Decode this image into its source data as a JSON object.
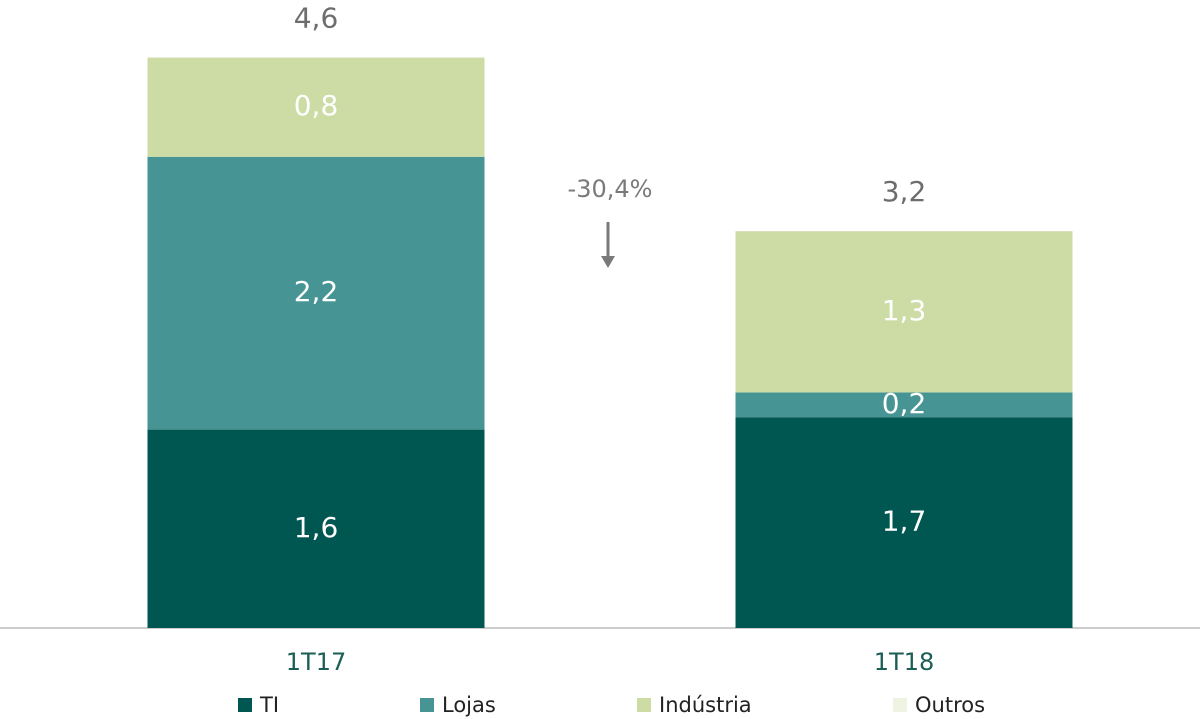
{
  "chart_data": {
    "type": "stacked_bar",
    "categories": [
      "1T17",
      "1T18"
    ],
    "series": [
      {
        "name": "TI",
        "color": "#005650",
        "values": [
          1.6,
          1.7
        ],
        "value_labels": [
          "1,6",
          "1,7"
        ]
      },
      {
        "name": "Lojas",
        "color": "#469494",
        "values": [
          2.2,
          0.2
        ],
        "value_labels": [
          "2,2",
          "0,2"
        ]
      },
      {
        "name": "Indústria",
        "color": "#cddca4",
        "values": [
          0.8,
          1.3
        ],
        "value_labels": [
          "0,8",
          "1,3"
        ]
      },
      {
        "name": "Outros",
        "color": "#eef3e2",
        "values": [
          0,
          0
        ]
      }
    ],
    "totals": [
      4.6,
      3.2
    ],
    "total_labels": [
      "4,6",
      "3,2"
    ],
    "annotation": "-30,4%"
  }
}
